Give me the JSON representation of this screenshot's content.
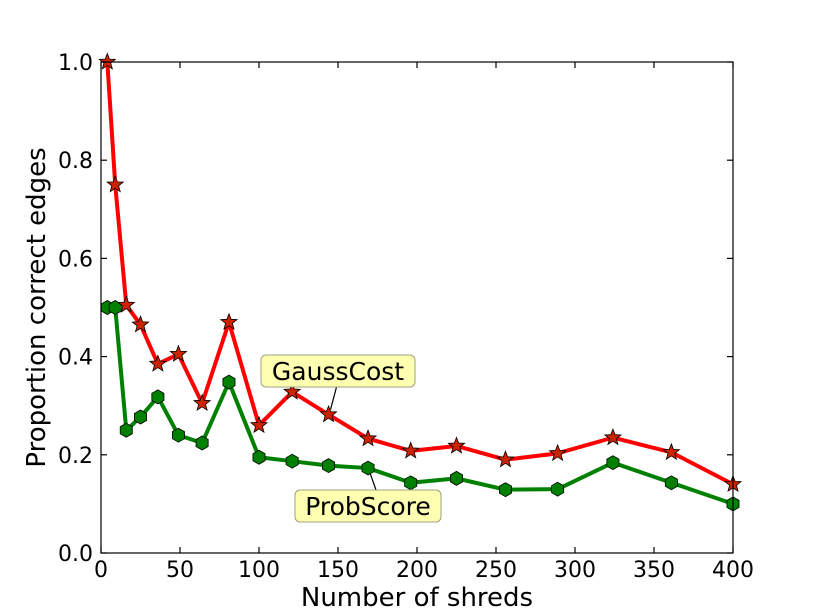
{
  "chart_data": {
    "type": "line",
    "xlabel": "Number of shreds",
    "ylabel": "Proportion correct edges",
    "xlim": [
      0,
      400
    ],
    "ylim": [
      0,
      1
    ],
    "x_ticks": [
      "0",
      "50",
      "100",
      "150",
      "200",
      "250",
      "300",
      "350",
      "400"
    ],
    "y_ticks": [
      "0.0",
      "0.2",
      "0.4",
      "0.6",
      "0.8",
      "1.0"
    ],
    "grid": false,
    "legend": "none",
    "x": [
      4,
      9,
      16,
      25,
      36,
      49,
      64,
      81,
      100,
      121,
      144,
      169,
      196,
      225,
      256,
      289,
      324,
      361,
      400
    ],
    "series": [
      {
        "name": "GaussCost",
        "color": "#ff0000",
        "marker": "star",
        "marker_color": "#cc2200",
        "values": [
          1.0,
          0.75,
          0.505,
          0.465,
          0.385,
          0.405,
          0.305,
          0.47,
          0.26,
          0.328,
          0.282,
          0.233,
          0.208,
          0.218,
          0.19,
          0.203,
          0.235,
          0.205,
          0.14
        ]
      },
      {
        "name": "ProbScore",
        "color": "#008000",
        "marker": "hexagon",
        "marker_color": "#008000",
        "values": [
          0.5,
          0.5,
          0.25,
          0.277,
          0.318,
          0.24,
          0.224,
          0.348,
          0.195,
          0.187,
          0.178,
          0.173,
          0.143,
          0.152,
          0.129,
          0.13,
          0.184,
          0.143,
          0.1
        ]
      }
    ],
    "annotations": [
      {
        "text": "GaussCost",
        "series": "GaussCost",
        "x": 144,
        "y": 0.282
      },
      {
        "text": "ProbScore",
        "series": "ProbScore",
        "x": 169,
        "y": 0.173
      }
    ],
    "annotation_box_color": "#ffffb2"
  }
}
